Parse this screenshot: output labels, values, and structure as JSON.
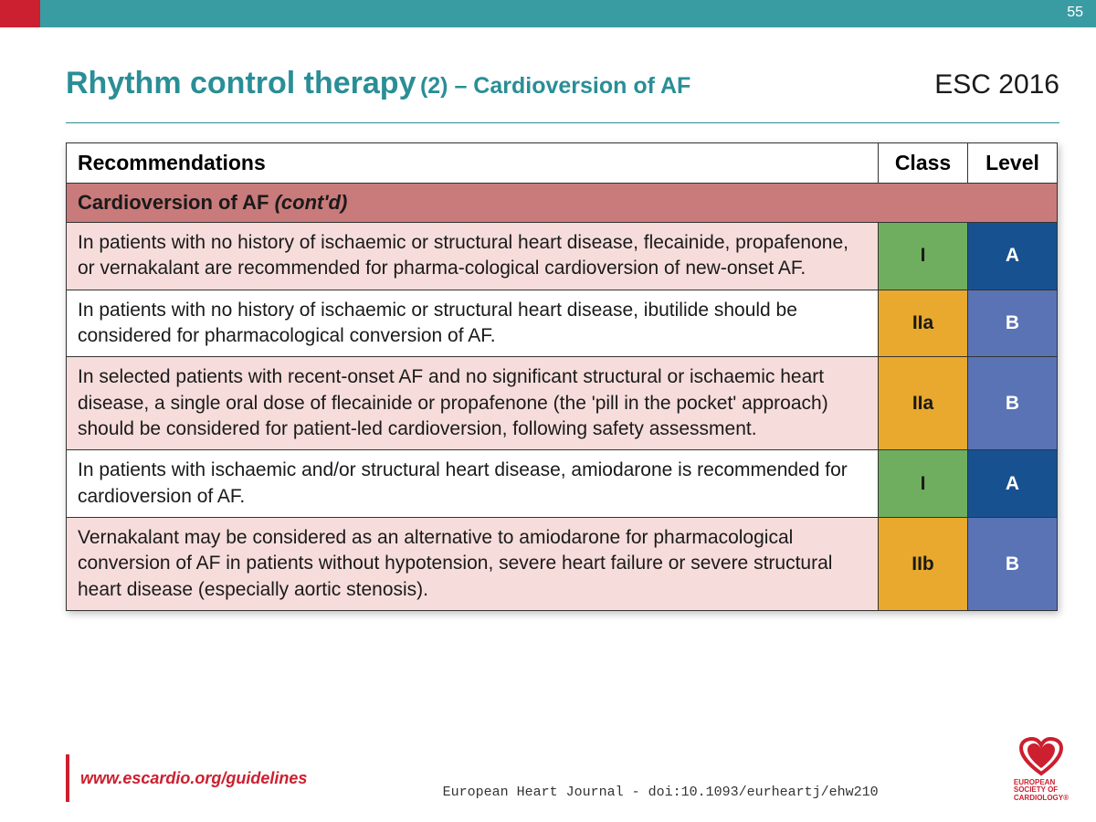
{
  "page_number": "55",
  "header": {
    "title_main": "Rhythm control therapy",
    "title_sub": "(2) – Cardioversion of AF",
    "esc_year": "ESC 2016"
  },
  "colors": {
    "topbar": "#3a9ca3",
    "accent_red": "#cc1f2f",
    "teal": "#2a8e96",
    "section_bg": "#c97a7a",
    "tint_bg": "#f6dddb",
    "class_I": "#6fae5e",
    "class_IIa": "#e8a92e",
    "class_IIb": "#e8a92e",
    "level_A": "#18518f",
    "level_B": "#5a73b5"
  },
  "table": {
    "columns": [
      "Recommendations",
      "Class",
      "Level"
    ],
    "section_label": "Cardioversion of AF",
    "section_contd": "(cont'd)",
    "rows": [
      {
        "text": "In patients with no history of ischaemic or structural heart disease, flecainide, propafenone, or vernakalant are recommended for pharma-cological cardioversion of new-onset AF.",
        "class": "I",
        "level": "A",
        "tinted": true
      },
      {
        "text": "In patients with no history of ischaemic or structural heart disease, ibutilide should be considered for pharmacological conversion of AF.",
        "class": "IIa",
        "level": "B",
        "tinted": false
      },
      {
        "text": "In selected patients with recent-onset AF and no significant structural or ischaemic heart disease, a single oral dose of flecainide or propafenone (the 'pill in the pocket' approach) should be considered for patient-led cardioversion, following safety assessment.",
        "class": "IIa",
        "level": "B",
        "tinted": true
      },
      {
        "text": "In patients with ischaemic and/or structural heart disease, amiodarone is recommended for cardioversion of AF.",
        "class": "I",
        "level": "A",
        "tinted": false
      },
      {
        "text": "Vernakalant may be considered as an alternative to amiodarone for pharmacological conversion of AF in patients without hypotension, severe heart failure or severe structural heart disease (especially aortic stenosis).",
        "class": "IIb",
        "level": "B",
        "tinted": true
      }
    ]
  },
  "footer": {
    "url": "www.escardio.org/guidelines",
    "journal": "European Heart Journal - doi:10.1093/eurheartj/ehw210",
    "logo_lines": [
      "EUROPEAN",
      "SOCIETY OF",
      "CARDIOLOGY®"
    ]
  }
}
